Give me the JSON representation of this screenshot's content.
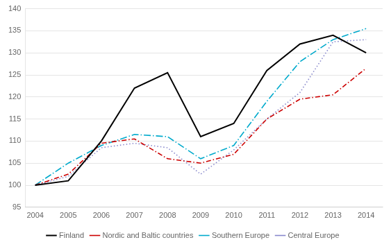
{
  "chart_data": {
    "type": "line",
    "x": [
      2004,
      2005,
      2006,
      2007,
      2008,
      2009,
      2010,
      2011,
      2012,
      2013,
      2014
    ],
    "series": [
      {
        "name": "Finland",
        "color": "#000000",
        "line_style": "solid",
        "values": [
          100,
          101,
          110,
          122,
          125.5,
          111,
          114,
          126,
          132,
          134,
          130
        ]
      },
      {
        "name": "Nordic and Baltic countries",
        "color": "#cc0000",
        "line_style": "dashdot",
        "values": [
          100,
          102.5,
          109.5,
          110.5,
          106,
          105,
          107,
          115,
          119.5,
          120.5,
          126.5
        ]
      },
      {
        "name": "Southern Europe",
        "color": "#00aacc",
        "line_style": "longdashdot",
        "values": [
          100,
          105,
          109,
          111.5,
          111,
          106,
          109,
          119,
          128,
          133,
          135.5
        ]
      },
      {
        "name": "Central Europe",
        "color": "#8888cc",
        "line_style": "dotted",
        "values": [
          100,
          102,
          108.5,
          109.5,
          108.5,
          102.5,
          108,
          115,
          121,
          132.5,
          133
        ]
      }
    ],
    "xlim": [
      2003.7,
      2014.5
    ],
    "xticks": [
      2004,
      2005,
      2006,
      2007,
      2008,
      2009,
      2010,
      2011,
      2012,
      2013,
      2014
    ],
    "ylim": [
      95,
      140
    ],
    "yticks": [
      95,
      100,
      105,
      110,
      115,
      120,
      125,
      130,
      135,
      140
    ],
    "grid": "y",
    "legend": "bottom"
  }
}
